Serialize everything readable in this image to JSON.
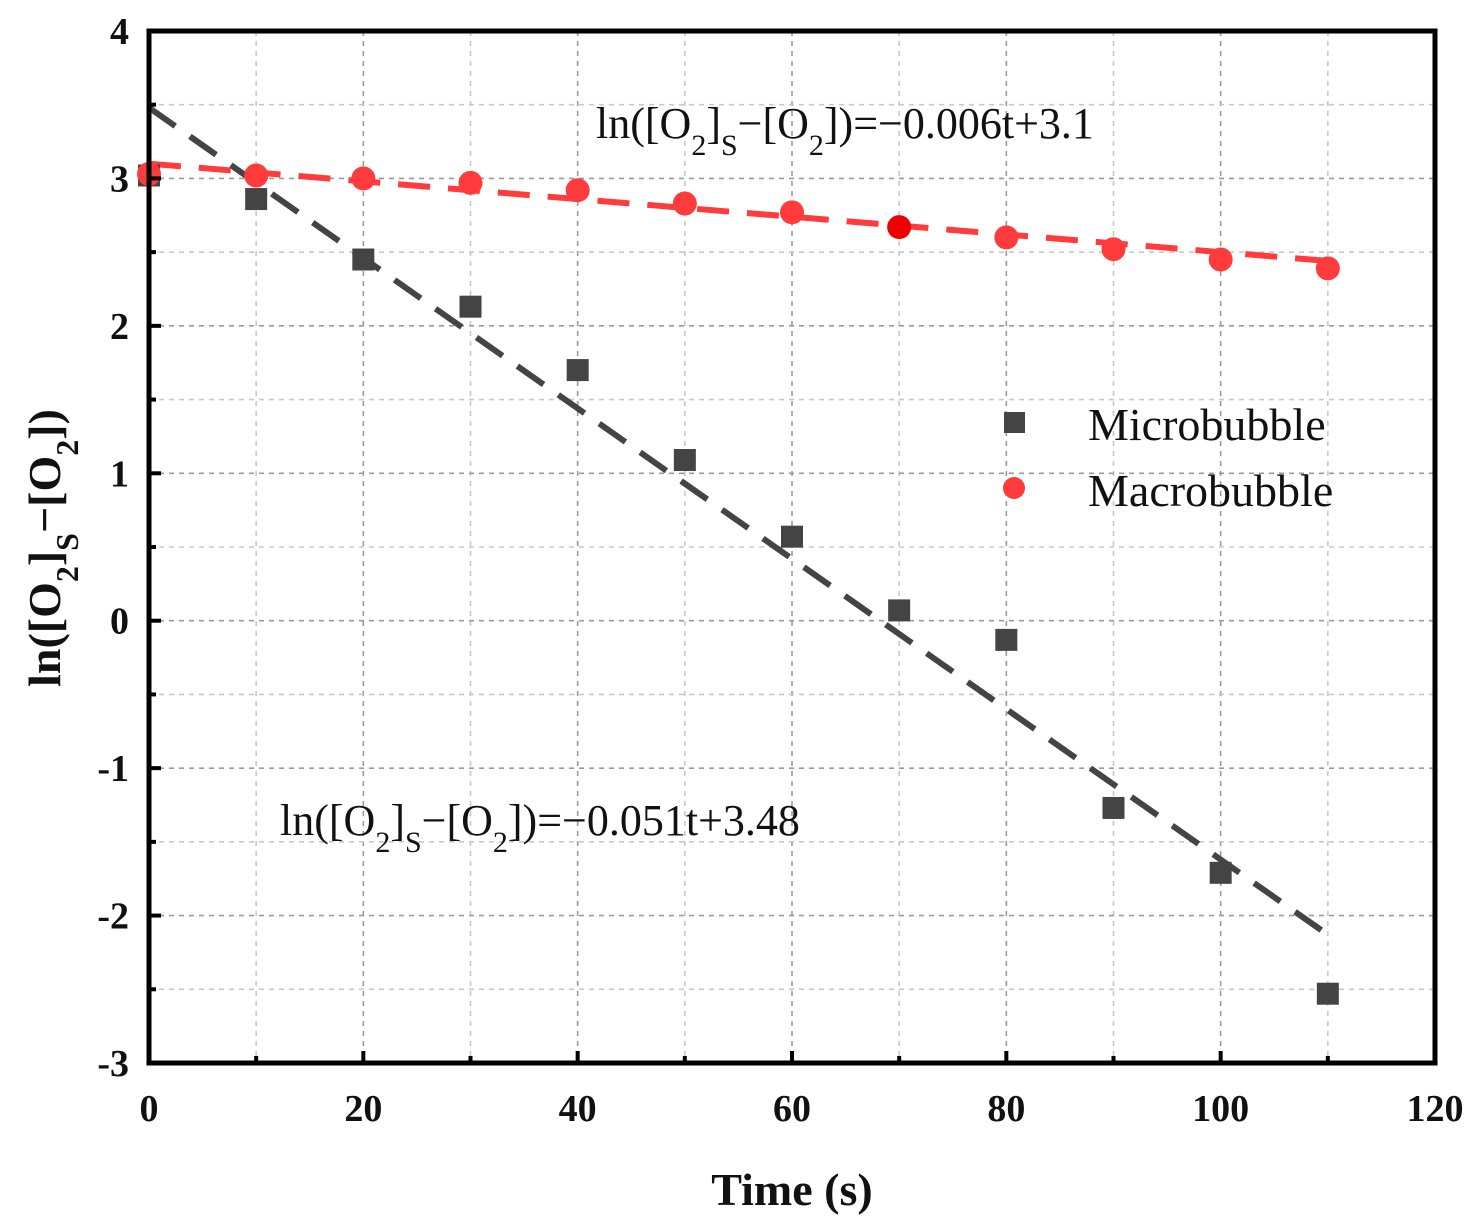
{
  "chart_data": {
    "type": "scatter",
    "xlabel": "Time (s)",
    "ylabel": {
      "prefix": "ln([O",
      "sub1": "2",
      "mid1": "]",
      "sub2": "S",
      "mid2": "−[O",
      "sub3": "2",
      "suffix": "])"
    },
    "xlim": [
      0,
      120
    ],
    "ylim": [
      -3,
      4
    ],
    "xticks": [
      0,
      20,
      40,
      60,
      80,
      100,
      120
    ],
    "yticks": [
      -3,
      -2,
      -1,
      0,
      1,
      2,
      3,
      4
    ],
    "x_tick_labels": [
      "0",
      "20",
      "40",
      "60",
      "80",
      "100",
      "120"
    ],
    "y_tick_labels": [
      "-3",
      "-2",
      "-1",
      "0",
      "1",
      "2",
      "3",
      "4"
    ],
    "grid": true,
    "legend_position": "right-middle",
    "series": [
      {
        "name": "Microbubble",
        "marker": "square",
        "color": "#444444",
        "x": [
          0,
          10,
          20,
          30,
          40,
          50,
          60,
          70,
          80,
          90,
          100,
          110
        ],
        "y": [
          3.02,
          2.86,
          2.45,
          2.13,
          1.7,
          1.09,
          0.57,
          0.07,
          -0.13,
          -1.27,
          -1.71,
          -2.53
        ],
        "fit": {
          "slope": -0.051,
          "intercept": 3.48,
          "x_range": [
            0,
            110
          ],
          "color": "#444444"
        }
      },
      {
        "name": "Macrobubble",
        "marker": "circle",
        "color": "#ff3b3b",
        "x": [
          0,
          10,
          20,
          30,
          40,
          50,
          60,
          70,
          80,
          90,
          100,
          110
        ],
        "y": [
          3.03,
          3.02,
          3.0,
          2.97,
          2.92,
          2.83,
          2.77,
          2.67,
          2.6,
          2.52,
          2.45,
          2.39
        ],
        "highlight_color": "#ee0000",
        "highlight_index": 7,
        "fit": {
          "slope": -0.006,
          "intercept": 3.1,
          "x_range": [
            0,
            110
          ],
          "color": "#ff3b3b"
        }
      }
    ],
    "annotations": [
      {
        "id": "macro-eq",
        "parts": {
          "a": "ln([O",
          "b": "2",
          "c": "]",
          "d": "S",
          "e": "−[O",
          "f": "2",
          "g": "])=−0.006t+3.1"
        }
      },
      {
        "id": "micro-eq",
        "parts": {
          "a": "ln([O",
          "b": "2",
          "c": "]",
          "d": "S",
          "e": "−[O",
          "f": "2",
          "g": "])=−0.051t+3.48"
        }
      }
    ]
  }
}
